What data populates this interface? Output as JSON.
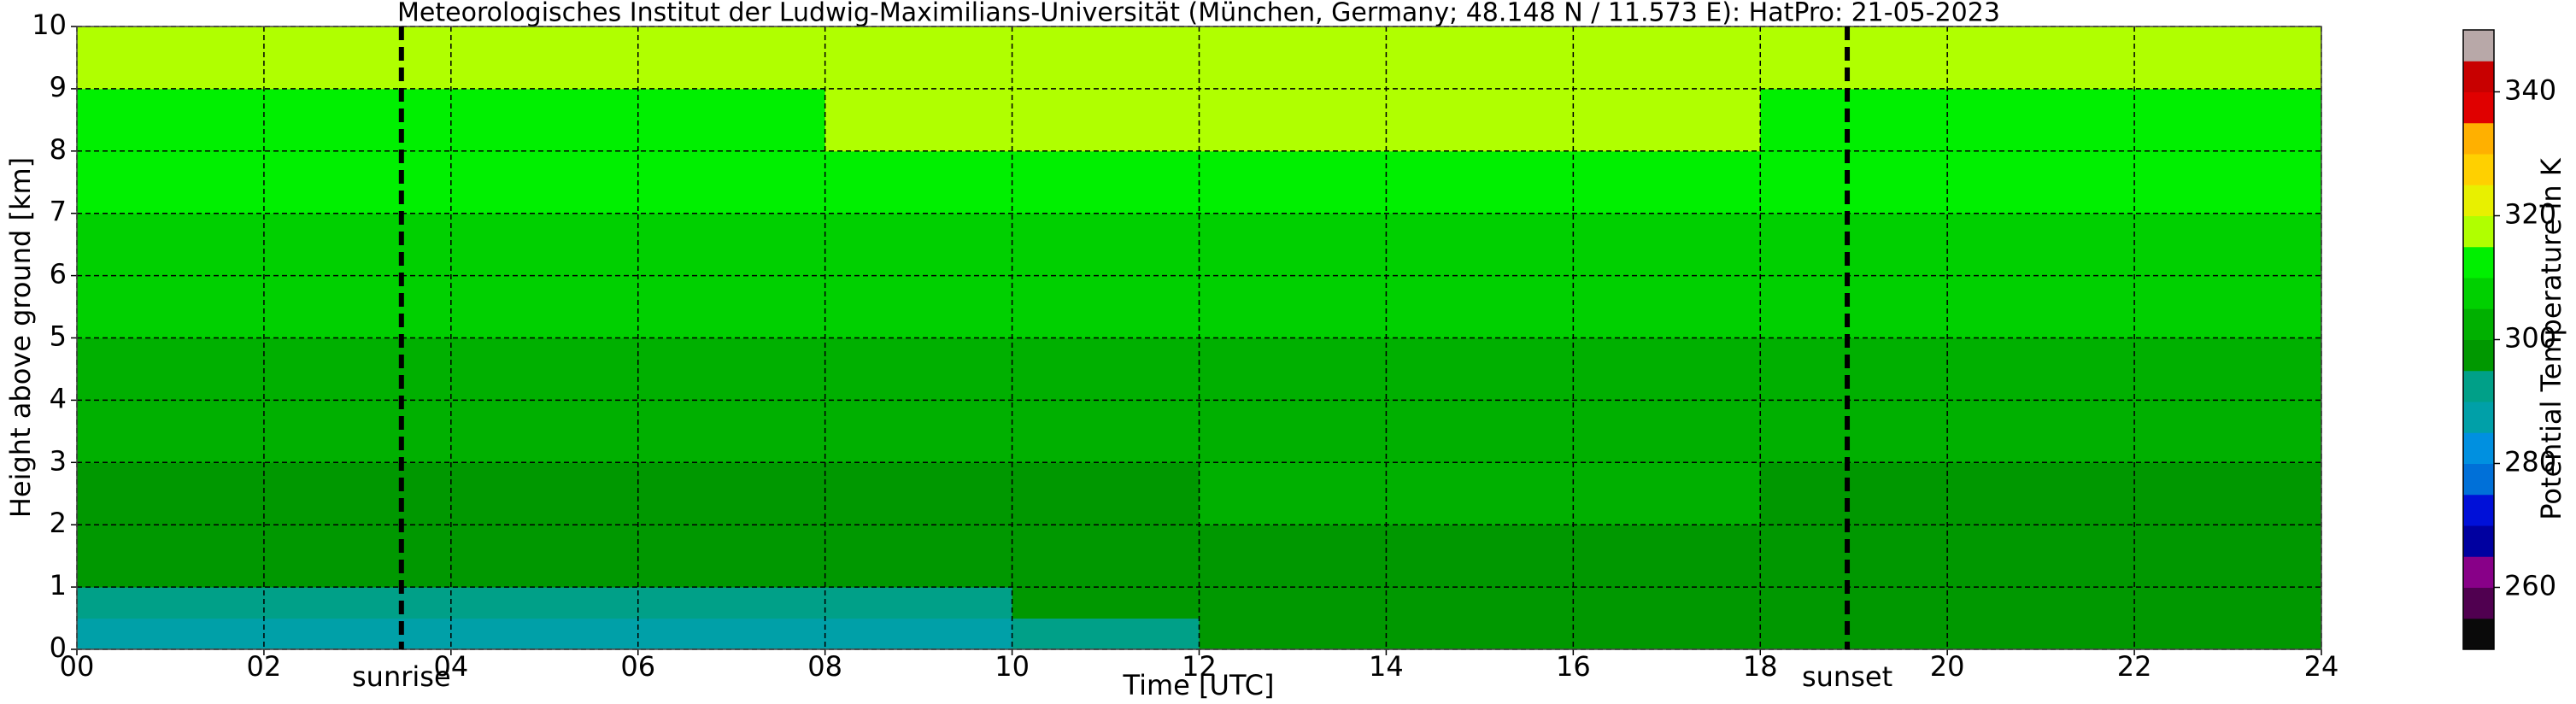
{
  "chart_data": {
    "type": "heatmap",
    "title": "Meteorologisches Institut der Ludwig-Maximilians-Universität (München, Germany; 48.148 N / 11.573 E):    HatPro: 21-05-2023",
    "xlabel": "Time [UTC]",
    "ylabel": "Height above ground [km]",
    "xlim": [
      0,
      24
    ],
    "ylim": [
      0,
      10
    ],
    "xticks": [
      {
        "value": 0,
        "label": "00"
      },
      {
        "value": 2,
        "label": "02"
      },
      {
        "value": 4,
        "label": "04"
      },
      {
        "value": 6,
        "label": "06"
      },
      {
        "value": 8,
        "label": "08"
      },
      10,
      12,
      14,
      16,
      18,
      20,
      22,
      24
    ],
    "yticks": [
      0,
      1,
      2,
      3,
      4,
      5,
      6,
      7,
      8,
      9,
      10
    ],
    "grid": true,
    "x_edges": [
      0,
      2,
      4,
      6,
      8,
      10,
      12,
      14,
      16,
      18,
      20,
      22,
      24
    ],
    "y_edges": [
      0,
      0.5,
      1,
      2,
      3,
      4,
      5,
      6,
      7,
      8,
      9,
      10
    ],
    "z": [
      [
        288,
        287,
        287,
        288,
        289,
        294,
        296,
        296,
        296,
        296,
        295,
        295
      ],
      [
        294,
        294,
        293,
        293,
        294,
        296,
        297,
        297,
        297,
        297,
        296,
        296
      ],
      [
        297,
        297,
        297,
        297,
        297,
        298,
        298,
        298,
        298,
        298,
        298,
        298
      ],
      [
        299,
        299,
        299,
        299,
        299,
        299,
        300,
        300,
        300,
        299,
        299,
        299
      ],
      [
        301,
        301,
        301,
        301,
        301,
        302,
        302,
        302,
        302,
        302,
        302,
        302
      ],
      [
        304,
        304,
        304,
        304,
        304,
        304,
        304,
        304,
        304,
        304,
        304,
        304
      ],
      [
        306,
        306,
        306,
        306,
        306,
        306,
        306,
        306,
        306,
        306,
        306,
        306
      ],
      [
        308,
        308,
        308,
        308,
        308,
        309,
        309,
        309,
        309,
        308,
        308,
        308
      ],
      [
        311,
        311,
        311,
        311,
        311,
        311,
        311,
        311,
        311,
        311,
        311,
        311
      ],
      [
        314,
        314,
        314,
        314,
        315,
        315,
        315,
        315,
        315,
        314,
        314,
        314
      ],
      [
        318,
        318,
        318,
        318,
        318,
        318,
        318,
        318,
        318,
        318,
        318,
        318
      ]
    ],
    "vlines": [
      {
        "x": 3.47,
        "label": "sunrise"
      },
      {
        "x": 18.93,
        "label": "sunset"
      }
    ],
    "colorbar": {
      "label": "Potential Temperature in K",
      "clim": [
        250,
        350
      ],
      "ticks": [
        260,
        280,
        300,
        320,
        340
      ],
      "bounds": [
        250,
        255,
        260,
        265,
        270,
        275,
        280,
        285,
        290,
        295,
        300,
        305,
        310,
        315,
        320,
        325,
        330,
        335,
        340,
        345,
        350
      ],
      "colors": [
        "#0a0a0a",
        "#500050",
        "#880088",
        "#0000a0",
        "#0010d8",
        "#0070d8",
        "#0090e0",
        "#00a0a8",
        "#00a088",
        "#009800",
        "#00b000",
        "#00d000",
        "#00f000",
        "#b0ff00",
        "#e8f000",
        "#ffd000",
        "#ffb000",
        "#e00000",
        "#c80000",
        "#b8a8a8"
      ]
    }
  }
}
